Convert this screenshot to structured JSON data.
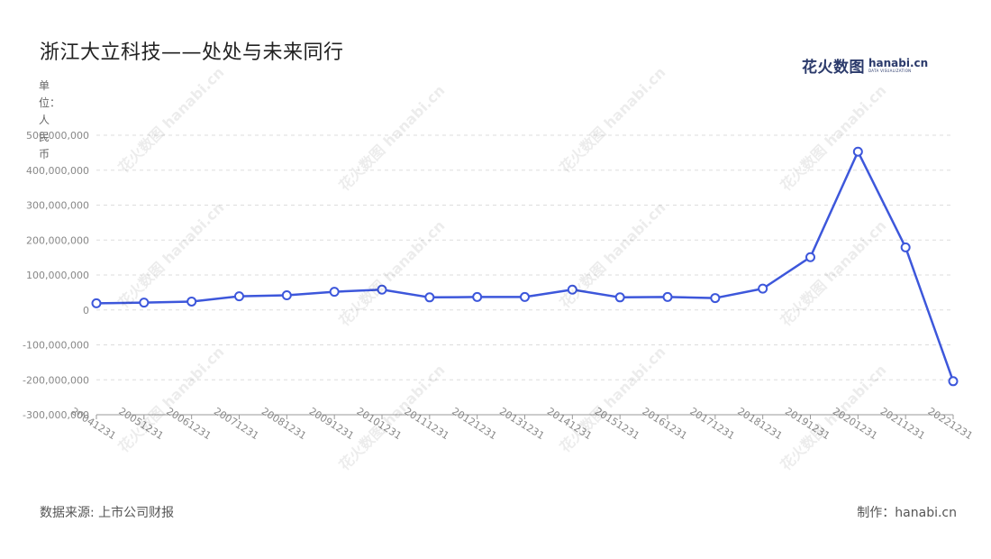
{
  "title": "浙江大立科技——处处与未来同行",
  "unit_label": "单位：人民币",
  "source": "数据来源: 上市公司财报",
  "credit": "制作：hanabi.cn",
  "brand": {
    "cn": "花火数图",
    "en": "hanabi.cn",
    "sub": "DATA VISUALIZATION"
  },
  "watermark": {
    "cn": "花火数图",
    "en": "hanabi.cn"
  },
  "colors": {
    "line": "#3d57db",
    "marker_fill": "#ffffff",
    "grid": "#dddddd",
    "axis": "#999999",
    "tick_text": "#888888"
  },
  "chart_data": {
    "type": "line",
    "title": "浙江大立科技——处处与未来同行",
    "ylabel": "单位：人民币",
    "xlabel": "",
    "ylim": [
      -300000000,
      500000000
    ],
    "yticks": [
      500000000,
      400000000,
      300000000,
      200000000,
      100000000,
      0,
      -100000000,
      -200000000,
      -300000000
    ],
    "ytick_labels": [
      "500,000,000",
      "400,000,000",
      "300,000,000",
      "200,000,000",
      "100,000,000",
      "0",
      "-100,000,000",
      "-200,000,000",
      "-300,000,000"
    ],
    "grid": true,
    "categories": [
      "20041231",
      "20051231",
      "20061231",
      "20071231",
      "20081231",
      "20091231",
      "20101231",
      "20111231",
      "20121231",
      "20131231",
      "20141231",
      "20151231",
      "20161231",
      "20171231",
      "20181231",
      "20191231",
      "20201231",
      "20211231",
      "20221231"
    ],
    "series": [
      {
        "values": [
          19000000,
          21000000,
          24000000,
          39000000,
          42000000,
          52000000,
          58000000,
          36000000,
          37000000,
          37000000,
          58000000,
          36000000,
          37000000,
          34000000,
          61000000,
          151000000,
          453000000,
          179000000,
          -204000000
        ]
      }
    ]
  }
}
